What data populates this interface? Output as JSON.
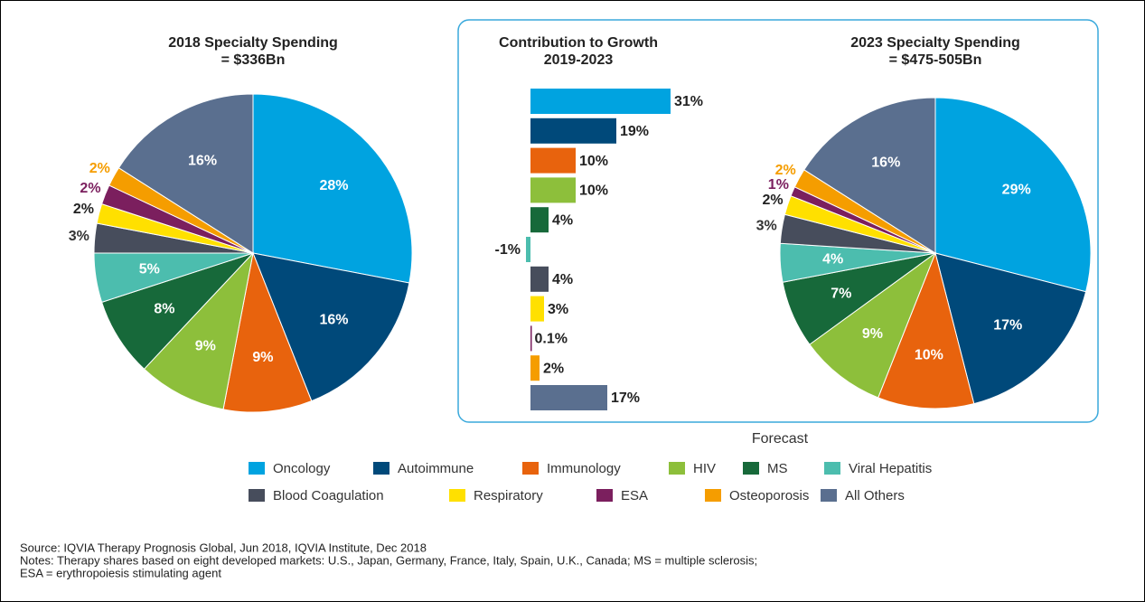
{
  "chart_data": [
    {
      "type": "pie",
      "title": "2018 Specialty Spending",
      "subtitle": "= $336Bn",
      "values": [
        28,
        16,
        9,
        9,
        8,
        5,
        3,
        2,
        2,
        2,
        16
      ],
      "value_labels": [
        "28%",
        "16%",
        "9%",
        "9%",
        "8%",
        "5%",
        "3%",
        "2%",
        "2%",
        "2%",
        "16%"
      ]
    },
    {
      "type": "bar",
      "title": "Contribution to Growth",
      "subtitle": "2019-2023",
      "values": [
        31,
        19,
        10,
        10,
        4,
        -1,
        4,
        3,
        0.1,
        2,
        17
      ],
      "value_labels": [
        "31%",
        "19%",
        "10%",
        "10%",
        "4%",
        "-1%",
        "4%",
        "3%",
        "0.1%",
        "2%",
        "17%"
      ]
    },
    {
      "type": "pie",
      "title": "2023 Specialty Spending",
      "subtitle": "= $475-505Bn",
      "values": [
        29,
        17,
        10,
        9,
        7,
        4,
        3,
        2,
        1,
        2,
        16
      ],
      "value_labels": [
        "29%",
        "17%",
        "10%",
        "9%",
        "7%",
        "4%",
        "3%",
        "2%",
        "1%",
        "2%",
        "16%"
      ]
    }
  ],
  "box_label": "Forecast",
  "legend": {
    "categories": [
      "Oncology",
      "Autoimmune",
      "Immunology",
      "HIV",
      "MS",
      "Viral Hepatitis",
      "Blood Coagulation",
      "Respiratory",
      "ESA",
      "Osteoporosis",
      "All Others"
    ],
    "colors": [
      "#00a3e0",
      "#00497a",
      "#e8630d",
      "#8dbf3b",
      "#17693a",
      "#4cbdae",
      "#474d5c",
      "#ffe000",
      "#7b1f5e",
      "#f59d00",
      "#5a6f8f"
    ]
  },
  "notes": [
    "Source: IQVIA Therapy Prognosis Global, Jun 2018, IQVIA Institute, Dec 2018",
    "Notes: Therapy shares based on eight developed markets: U.S., Japan, Germany, France, Italy, Spain, U.K., Canada; MS = multiple sclerosis;",
    "ESA = erythropoiesis stimulating agent"
  ]
}
